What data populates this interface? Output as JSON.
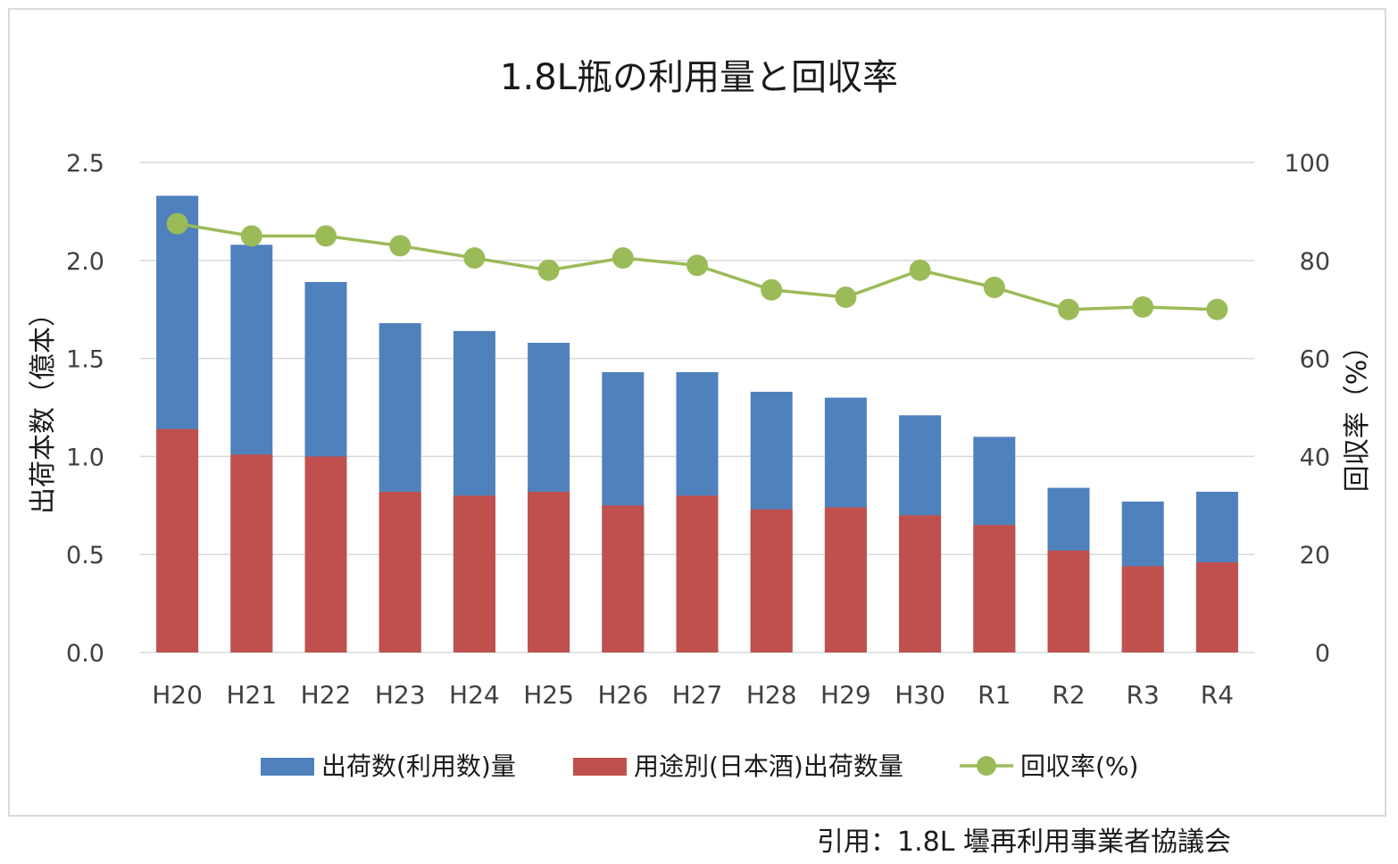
{
  "chart_data": {
    "type": "bar",
    "stacked": false,
    "title": "1.8L瓶の利用量と回収率",
    "ylabel": "出荷本数（億本）",
    "y2label": "回収率（%）",
    "ylim": [
      0,
      2.5
    ],
    "y2lim": [
      0,
      100
    ],
    "yticks": [
      "0.0",
      "0.5",
      "1.0",
      "1.5",
      "2.0",
      "2.5"
    ],
    "y2ticks": [
      "0",
      "20",
      "40",
      "60",
      "80",
      "100"
    ],
    "grid": true,
    "legend_position": "bottom",
    "categories": [
      "H20",
      "H21",
      "H22",
      "H23",
      "H24",
      "H25",
      "H26",
      "H27",
      "H28",
      "H29",
      "H30",
      "R1",
      "R2",
      "R3",
      "R4"
    ],
    "series": [
      {
        "name": "出荷数(利用数)量",
        "kind": "bar",
        "axis": "left",
        "color": "#4f81bd",
        "values": [
          2.33,
          2.08,
          1.89,
          1.68,
          1.64,
          1.58,
          1.43,
          1.43,
          1.33,
          1.3,
          1.21,
          1.1,
          0.84,
          0.77,
          0.82
        ]
      },
      {
        "name": "用途別(日本酒)出荷数量",
        "kind": "bar",
        "axis": "left",
        "color": "#c0504d",
        "values": [
          1.14,
          1.01,
          1.0,
          0.82,
          0.8,
          0.82,
          0.75,
          0.8,
          0.73,
          0.74,
          0.7,
          0.65,
          0.52,
          0.44,
          0.46
        ]
      },
      {
        "name": "回収率(%)",
        "kind": "line",
        "axis": "right",
        "color": "#9bbb59",
        "values": [
          87.5,
          85.0,
          85.0,
          83.0,
          80.5,
          78.0,
          80.5,
          79.0,
          74.0,
          72.5,
          78.0,
          74.5,
          70.0,
          70.5,
          70.0
        ]
      }
    ]
  },
  "source_note": "引用：1.8L 壜再利用事業者協議会"
}
